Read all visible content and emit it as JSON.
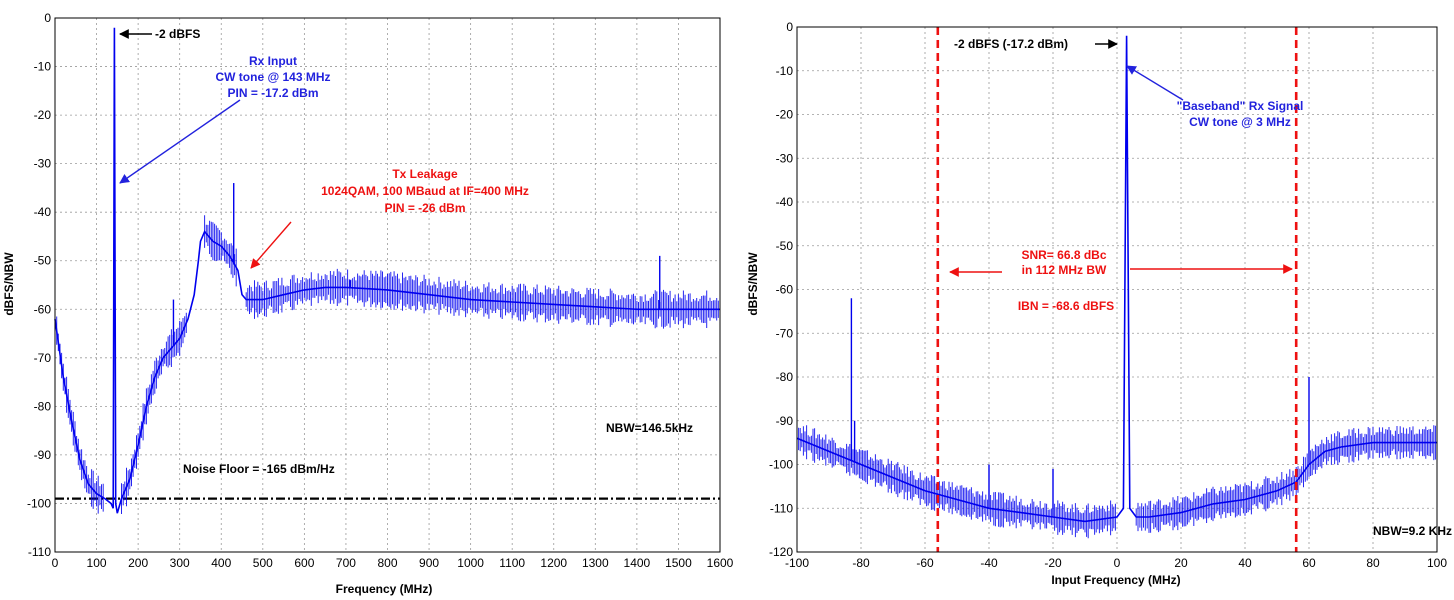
{
  "chart_data": [
    {
      "type": "line",
      "xlabel": "Frequency (MHz)",
      "ylabel": "dBFS/NBW",
      "xlim": [
        0,
        1600
      ],
      "ylim": [
        -110,
        0
      ],
      "x_ticks": [
        0,
        100,
        200,
        300,
        400,
        500,
        600,
        700,
        800,
        900,
        1000,
        1100,
        1200,
        1300,
        1400,
        1500,
        1600
      ],
      "y_ticks": [
        0,
        -10,
        -20,
        -30,
        -40,
        -50,
        -60,
        -70,
        -80,
        -90,
        -100,
        -110
      ],
      "grid": true,
      "series": [
        {
          "color": "#0000ee",
          "x": [
            0,
            20,
            40,
            60,
            80,
            100,
            120,
            135,
            140,
            143,
            146,
            150,
            160,
            180,
            200,
            220,
            240,
            260,
            280,
            300,
            320,
            335,
            345,
            350,
            360,
            380,
            400,
            420,
            440,
            450,
            460,
            480,
            500,
            550,
            600,
            650,
            700,
            800,
            900,
            1000,
            1100,
            1200,
            1300,
            1400,
            1500,
            1600
          ],
          "y": [
            -62,
            -74,
            -83,
            -91,
            -96,
            -98,
            -99,
            -100,
            -101,
            -2,
            -100,
            -102,
            -99,
            -95,
            -88,
            -80,
            -74,
            -70,
            -68,
            -66,
            -62,
            -57,
            -50,
            -46,
            -44,
            -46,
            -47,
            -49,
            -52,
            -57,
            -58,
            -58,
            -58,
            -57,
            -56,
            -55.5,
            -55.5,
            -56,
            -57,
            -58,
            -58.5,
            -59,
            -59.5,
            -60,
            -60,
            -60
          ]
        }
      ],
      "spurs": [
        {
          "x": 285,
          "y": -58
        },
        {
          "x": 430,
          "y": -34
        },
        {
          "x": 710,
          "y": -54
        },
        {
          "x": 1455,
          "y": -49
        }
      ],
      "reference_line": {
        "y": -99,
        "style": "dash-dot",
        "color": "#000000"
      },
      "annotations": [
        {
          "text": "-2 dBFS",
          "color": "#000000"
        },
        {
          "lines": [
            "Rx Input",
            "CW tone @ 143 MHz",
            "PIN = -17.2 dBm"
          ],
          "color": "#2222dd"
        },
        {
          "lines": [
            "Tx Leakage",
            "1024QAM, 100 MBaud at IF=400 MHz",
            "PIN = -26 dBm"
          ],
          "color": "#ee1111"
        },
        {
          "text": "NBW=146.5kHz",
          "color": "#000000"
        },
        {
          "text": "Noise Floor = -165 dBm/Hz",
          "color": "#000000"
        }
      ]
    },
    {
      "type": "line",
      "xlabel": "Input Frequency (MHz)",
      "ylabel": "dBFS/NBW",
      "xlim": [
        -100,
        100
      ],
      "ylim": [
        -120,
        0
      ],
      "x_ticks": [
        -100,
        -80,
        -60,
        -40,
        -20,
        0,
        20,
        40,
        60,
        80,
        100
      ],
      "y_ticks": [
        0,
        -10,
        -20,
        -30,
        -40,
        -50,
        -60,
        -70,
        -80,
        -90,
        -100,
        -110,
        -120
      ],
      "grid": true,
      "series": [
        {
          "color": "#0000ee",
          "x": [
            -100,
            -90,
            -80,
            -70,
            -60,
            -50,
            -40,
            -30,
            -20,
            -10,
            0,
            2,
            3,
            4,
            6,
            10,
            20,
            30,
            40,
            50,
            56,
            60,
            65,
            70,
            80,
            90,
            100
          ],
          "y": [
            -94,
            -97,
            -100,
            -103,
            -106,
            -108,
            -110,
            -111,
            -112,
            -113,
            -112,
            -110,
            -2,
            -110,
            -112,
            -112,
            -111,
            -109,
            -108,
            -106,
            -104,
            -100,
            -97,
            -96,
            -95,
            -95,
            -95
          ]
        }
      ],
      "spurs": [
        {
          "x": -83,
          "y": -62
        },
        {
          "x": -82,
          "y": -90
        },
        {
          "x": -40,
          "y": -100
        },
        {
          "x": -20,
          "y": -101
        },
        {
          "x": 60,
          "y": -80
        }
      ],
      "bandwidth_markers": {
        "x": [
          -56,
          56
        ],
        "style": "dashed",
        "color": "#ee1111"
      },
      "annotations": [
        {
          "text": "-2 dBFS (-17.2 dBm)",
          "color": "#000000"
        },
        {
          "lines": [
            "\"Baseband\" Rx Signal",
            "CW tone @ 3 MHz"
          ],
          "color": "#2222dd"
        },
        {
          "lines": [
            "SNR= 66.8 dBc",
            "in 112 MHz BW"
          ],
          "color": "#ee1111"
        },
        {
          "text": "IBN = -68.6 dBFS",
          "color": "#ee1111"
        },
        {
          "text": "NBW=9.2 KHz",
          "color": "#000000"
        }
      ]
    }
  ]
}
